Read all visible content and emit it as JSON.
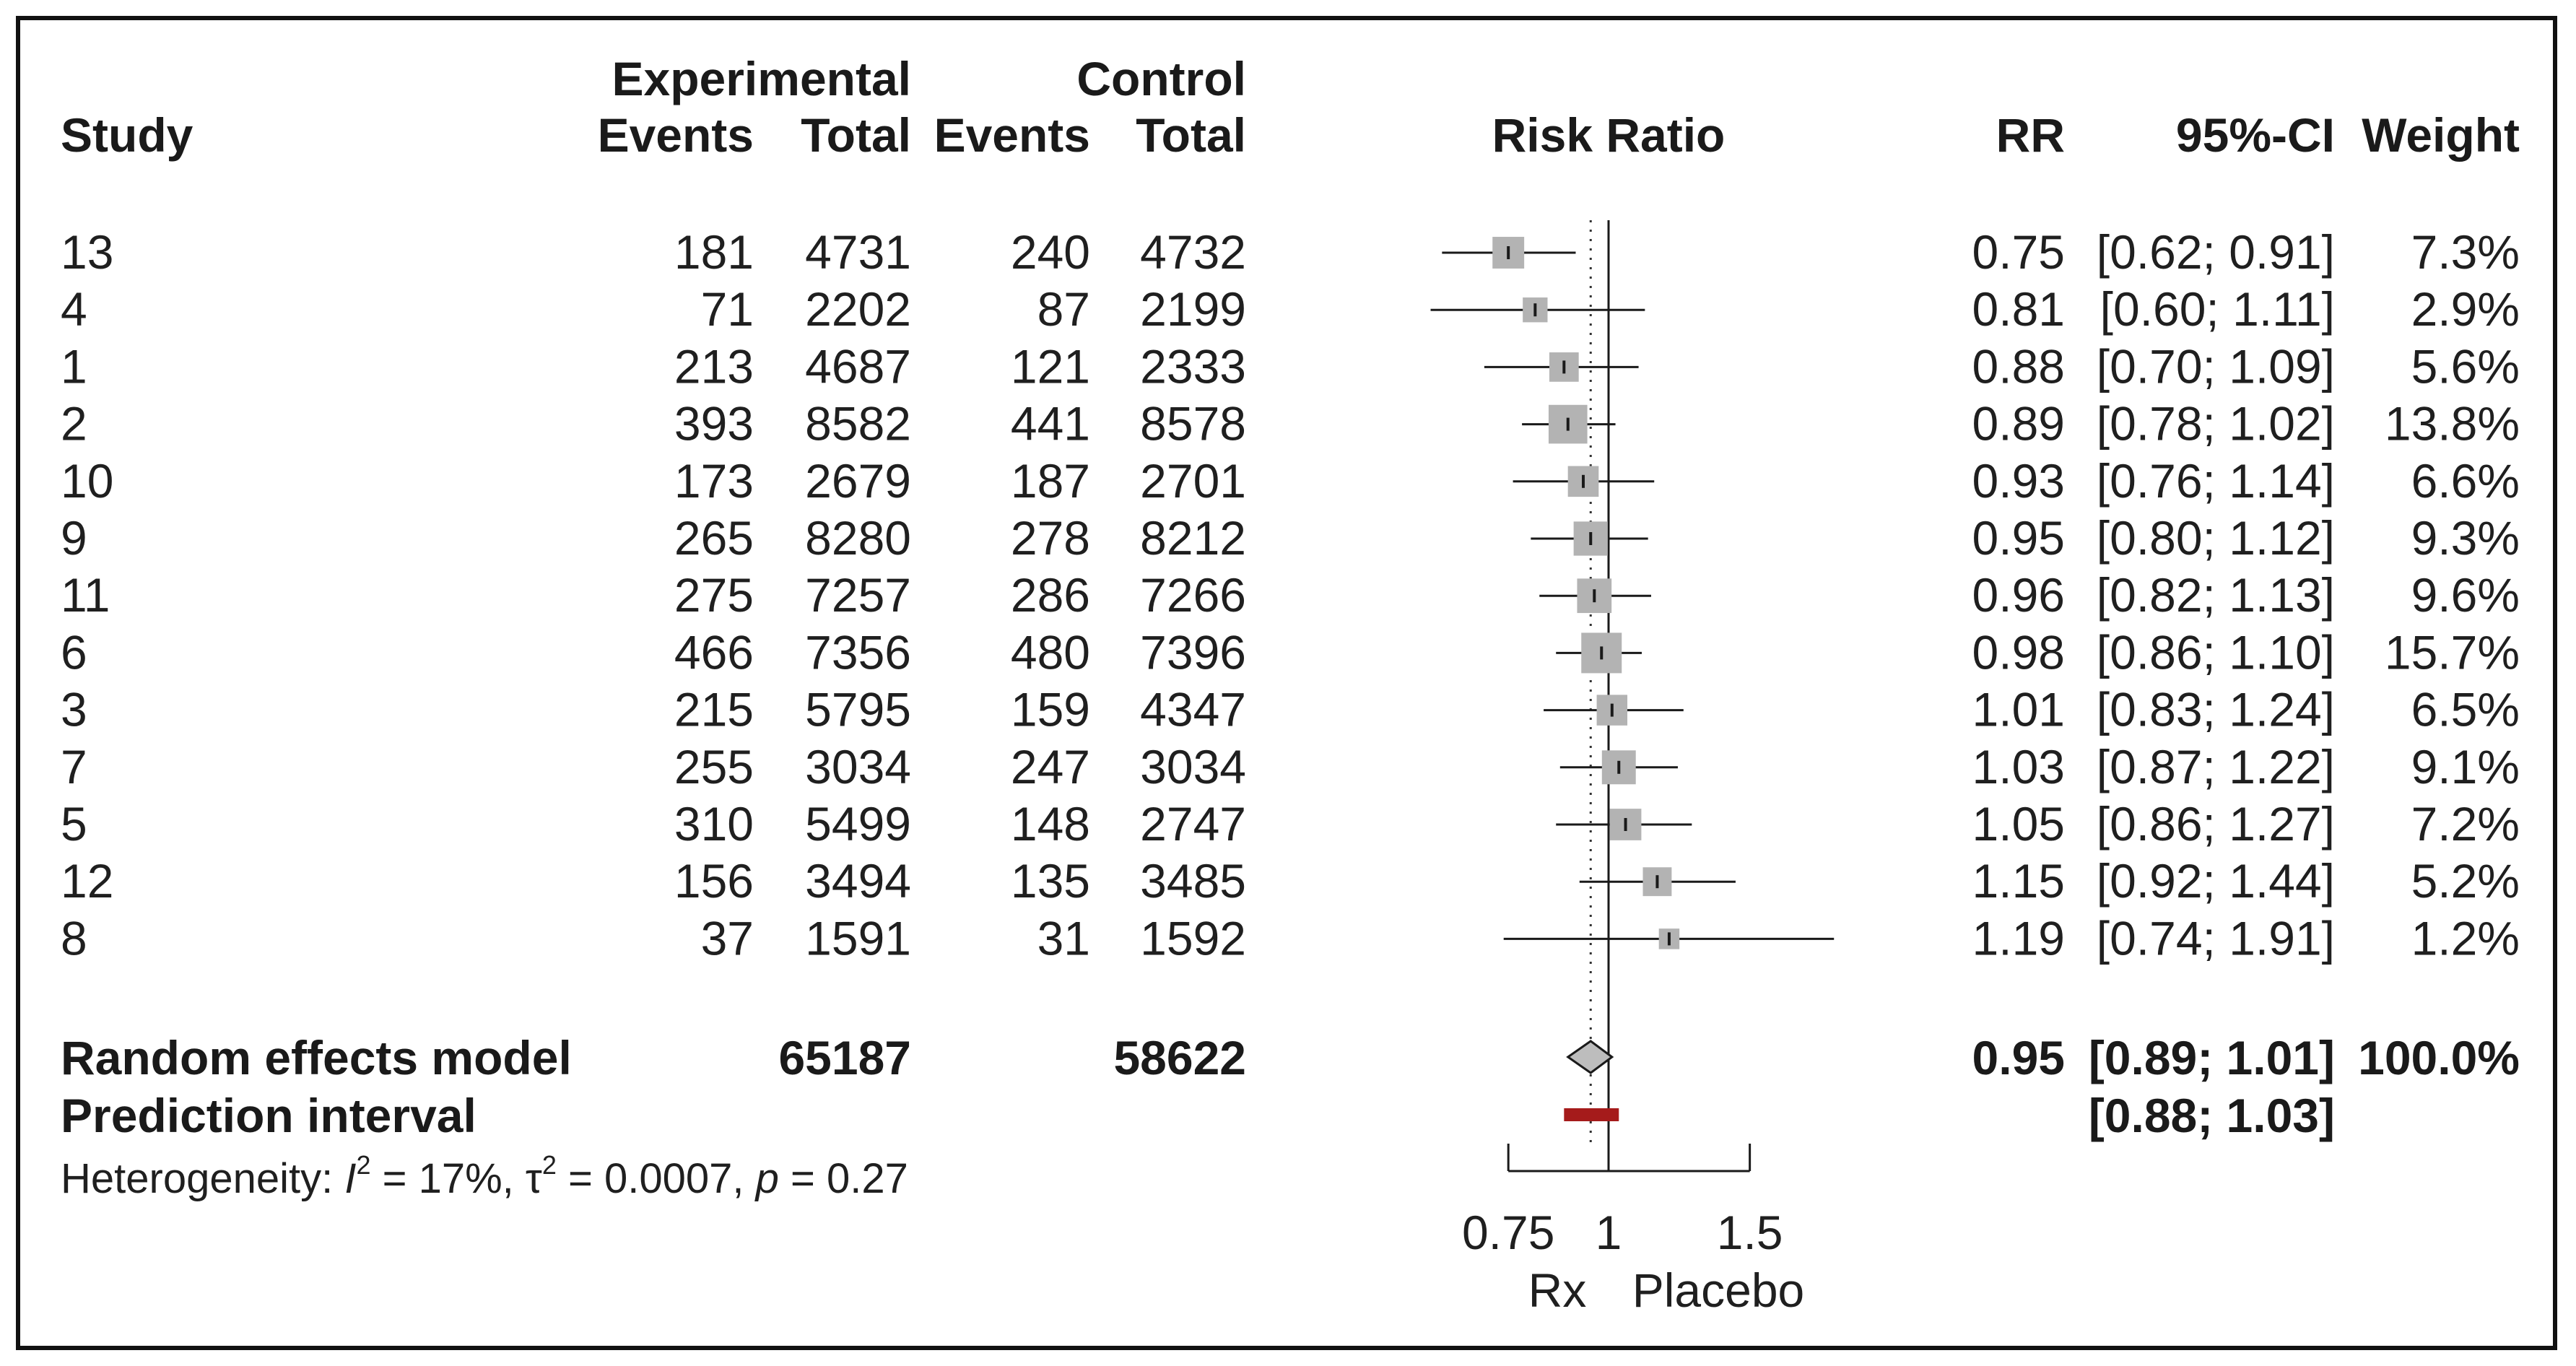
{
  "chart_data": {
    "type": "forest",
    "headers": {
      "study": "Study",
      "experimental_group": "Experimental",
      "control_group": "Control",
      "events": "Events",
      "total": "Total",
      "plot_title": "Risk Ratio",
      "rr": "RR",
      "ci": "95%-CI",
      "weight": "Weight"
    },
    "studies": [
      {
        "study": "13",
        "exp_events": "181",
        "exp_total": "4731",
        "ctl_events": "240",
        "ctl_total": "4732",
        "rr": 0.75,
        "lo": 0.62,
        "hi": 0.91,
        "rr_text": "0.75",
        "ci_text": "[0.62; 0.91]",
        "weight": 7.3,
        "weight_text": "7.3%"
      },
      {
        "study": "4",
        "exp_events": "71",
        "exp_total": "2202",
        "ctl_events": "87",
        "ctl_total": "2199",
        "rr": 0.81,
        "lo": 0.6,
        "hi": 1.11,
        "rr_text": "0.81",
        "ci_text": "[0.60; 1.11]",
        "weight": 2.9,
        "weight_text": "2.9%"
      },
      {
        "study": "1",
        "exp_events": "213",
        "exp_total": "4687",
        "ctl_events": "121",
        "ctl_total": "2333",
        "rr": 0.88,
        "lo": 0.7,
        "hi": 1.09,
        "rr_text": "0.88",
        "ci_text": "[0.70; 1.09]",
        "weight": 5.6,
        "weight_text": "5.6%"
      },
      {
        "study": "2",
        "exp_events": "393",
        "exp_total": "8582",
        "ctl_events": "441",
        "ctl_total": "8578",
        "rr": 0.89,
        "lo": 0.78,
        "hi": 1.02,
        "rr_text": "0.89",
        "ci_text": "[0.78; 1.02]",
        "weight": 13.8,
        "weight_text": "13.8%"
      },
      {
        "study": "10",
        "exp_events": "173",
        "exp_total": "2679",
        "ctl_events": "187",
        "ctl_total": "2701",
        "rr": 0.93,
        "lo": 0.76,
        "hi": 1.14,
        "rr_text": "0.93",
        "ci_text": "[0.76; 1.14]",
        "weight": 6.6,
        "weight_text": "6.6%"
      },
      {
        "study": "9",
        "exp_events": "265",
        "exp_total": "8280",
        "ctl_events": "278",
        "ctl_total": "8212",
        "rr": 0.95,
        "lo": 0.8,
        "hi": 1.12,
        "rr_text": "0.95",
        "ci_text": "[0.80; 1.12]",
        "weight": 9.3,
        "weight_text": "9.3%"
      },
      {
        "study": "11",
        "exp_events": "275",
        "exp_total": "7257",
        "ctl_events": "286",
        "ctl_total": "7266",
        "rr": 0.96,
        "lo": 0.82,
        "hi": 1.13,
        "rr_text": "0.96",
        "ci_text": "[0.82; 1.13]",
        "weight": 9.6,
        "weight_text": "9.6%"
      },
      {
        "study": "6",
        "exp_events": "466",
        "exp_total": "7356",
        "ctl_events": "480",
        "ctl_total": "7396",
        "rr": 0.98,
        "lo": 0.86,
        "hi": 1.1,
        "rr_text": "0.98",
        "ci_text": "[0.86; 1.10]",
        "weight": 15.7,
        "weight_text": "15.7%"
      },
      {
        "study": "3",
        "exp_events": "215",
        "exp_total": "5795",
        "ctl_events": "159",
        "ctl_total": "4347",
        "rr": 1.01,
        "lo": 0.83,
        "hi": 1.24,
        "rr_text": "1.01",
        "ci_text": "[0.83; 1.24]",
        "weight": 6.5,
        "weight_text": "6.5%"
      },
      {
        "study": "7",
        "exp_events": "255",
        "exp_total": "3034",
        "ctl_events": "247",
        "ctl_total": "3034",
        "rr": 1.03,
        "lo": 0.87,
        "hi": 1.22,
        "rr_text": "1.03",
        "ci_text": "[0.87; 1.22]",
        "weight": 9.1,
        "weight_text": "9.1%"
      },
      {
        "study": "5",
        "exp_events": "310",
        "exp_total": "5499",
        "ctl_events": "148",
        "ctl_total": "2747",
        "rr": 1.05,
        "lo": 0.86,
        "hi": 1.27,
        "rr_text": "1.05",
        "ci_text": "[0.86; 1.27]",
        "weight": 7.2,
        "weight_text": "7.2%"
      },
      {
        "study": "12",
        "exp_events": "156",
        "exp_total": "3494",
        "ctl_events": "135",
        "ctl_total": "3485",
        "rr": 1.15,
        "lo": 0.92,
        "hi": 1.44,
        "rr_text": "1.15",
        "ci_text": "[0.92; 1.44]",
        "weight": 5.2,
        "weight_text": "5.2%"
      },
      {
        "study": "8",
        "exp_events": "37",
        "exp_total": "1591",
        "ctl_events": "31",
        "ctl_total": "1592",
        "rr": 1.19,
        "lo": 0.74,
        "hi": 1.91,
        "rr_text": "1.19",
        "ci_text": "[0.74; 1.91]",
        "weight": 1.2,
        "weight_text": "1.2%"
      }
    ],
    "pooled": {
      "label": "Random effects model",
      "exp_total": "65187",
      "ctl_total": "58622",
      "rr": 0.95,
      "lo": 0.89,
      "hi": 1.01,
      "rr_text": "0.95",
      "ci_text": "[0.89; 1.01]",
      "weight_text": "100.0%"
    },
    "prediction_interval": {
      "label": "Prediction interval",
      "lo": 0.88,
      "hi": 1.03,
      "ci_text": "[0.88; 1.03]"
    },
    "heterogeneity": {
      "prefix": "Heterogeneity: ",
      "i2_symbol": "I",
      "i2_value": " = 17%, ",
      "tau2_symbol": "τ",
      "tau2_value": " = 0.0007, ",
      "p_symbol": "p",
      "p_value": " = 0.27",
      "superscript": "2"
    },
    "x_axis": {
      "scale": "log",
      "ticks": [
        0.75,
        1,
        1.5
      ],
      "tick_labels": [
        "0.75",
        "1",
        "1.5"
      ],
      "range": [
        0.75,
        1.5
      ],
      "left_label": "Rx",
      "right_label": "Placebo",
      "reference_line": 1,
      "pooled_reference_line": 0.95
    },
    "colors": {
      "square": "#b3b3b3",
      "diamond": "#bdbdbd",
      "prediction_bar": "#a51b1b",
      "line": "#1a1a1a"
    }
  }
}
